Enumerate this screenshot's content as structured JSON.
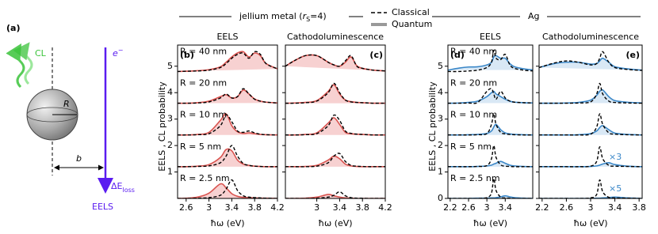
{
  "header": {
    "jellium": [
      "jellium metal (",
      "r",
      "S",
      "=4)"
    ],
    "ag": "Ag",
    "legend": [
      "Classical",
      "Quantum"
    ]
  },
  "schematic": {
    "panel": "(a)",
    "cl": "CL",
    "electron": [
      "e",
      "−"
    ],
    "radius": "R",
    "distance": "b",
    "loss": [
      "ΔE",
      "loss"
    ],
    "eels": "EELS"
  },
  "chart_data": [
    {
      "type": "line",
      "title": "EELS",
      "panel": "(b)",
      "color": "#d9534f",
      "fill": "#f5c6c6",
      "xlabel": "ħω (eV)",
      "ylabel": "EELS , CL  probability",
      "xlim": [
        2.45,
        4.2
      ],
      "xticks": [
        2.6,
        3,
        3.4,
        3.8,
        4.2
      ],
      "ylim": [
        0,
        5.8
      ],
      "yticks": [
        1,
        2,
        3,
        4,
        5
      ],
      "ytick_labels": true,
      "x": [
        2.45,
        2.6,
        2.8,
        3.0,
        3.2,
        3.3,
        3.4,
        3.5,
        3.6,
        3.7,
        3.8,
        3.9,
        4.0,
        4.2
      ],
      "rows": [
        {
          "label": "R = 2.5 nm",
          "classical": [
            0,
            0,
            0.01,
            0.03,
            0.12,
            0.35,
            0.7,
            0.3,
            0.1,
            0.05,
            0.03,
            0.02,
            0.01,
            0
          ],
          "quantum": [
            0,
            0.01,
            0.05,
            0.2,
            0.55,
            0.4,
            0.18,
            0.08,
            0.04,
            0.03,
            0.02,
            0.01,
            0.01,
            0
          ]
        },
        {
          "label": "R = 5 nm",
          "classical": [
            1.2,
            1.2,
            1.21,
            1.23,
            1.35,
            1.6,
            2.0,
            1.6,
            1.32,
            1.25,
            1.22,
            1.21,
            1.2,
            1.2
          ],
          "quantum": [
            1.2,
            1.2,
            1.22,
            1.28,
            1.55,
            1.85,
            1.8,
            1.45,
            1.3,
            1.25,
            1.22,
            1.21,
            1.2,
            1.2
          ]
        },
        {
          "label": "R = 10 nm",
          "classical": [
            2.4,
            2.4,
            2.41,
            2.45,
            2.75,
            3.16,
            2.9,
            2.55,
            2.5,
            2.55,
            2.48,
            2.43,
            2.41,
            2.4
          ],
          "quantum": [
            2.4,
            2.4,
            2.42,
            2.5,
            2.95,
            3.2,
            2.75,
            2.52,
            2.46,
            2.48,
            2.45,
            2.42,
            2.41,
            2.4
          ]
        },
        {
          "label": "R = 20 nm",
          "classical": [
            3.6,
            3.6,
            3.61,
            3.65,
            3.8,
            3.95,
            3.8,
            3.85,
            4.15,
            3.95,
            3.75,
            3.68,
            3.64,
            3.61
          ],
          "quantum": [
            3.6,
            3.6,
            3.62,
            3.68,
            3.85,
            3.92,
            3.8,
            3.85,
            4.1,
            3.95,
            3.76,
            3.68,
            3.64,
            3.61
          ]
        },
        {
          "label": "R = 40 nm",
          "classical": [
            4.8,
            4.81,
            4.82,
            4.85,
            4.95,
            5.1,
            5.3,
            5.45,
            5.5,
            5.3,
            5.55,
            5.45,
            5.1,
            4.9
          ],
          "quantum": [
            4.8,
            4.81,
            4.83,
            4.87,
            4.98,
            5.15,
            5.35,
            5.5,
            5.55,
            5.35,
            5.5,
            5.4,
            5.1,
            4.9
          ]
        }
      ]
    },
    {
      "type": "line",
      "title": "Cathodoluminescence",
      "panel": "(c)",
      "color": "#d9534f",
      "fill": "#f5c6c6",
      "xlabel": "ħω (eV)",
      "xlim": [
        2.45,
        4.2
      ],
      "xticks": [
        3,
        3.4,
        3.8,
        4.2
      ],
      "ylim": [
        0,
        5.8
      ],
      "yticks": [
        1,
        2,
        3,
        4,
        5
      ],
      "ytick_labels": false,
      "x": [
        2.45,
        2.6,
        2.8,
        3.0,
        3.2,
        3.3,
        3.4,
        3.5,
        3.6,
        3.7,
        3.8,
        3.9,
        4.0,
        4.2
      ],
      "rows": [
        {
          "classical": [
            0,
            0,
            0,
            0.01,
            0.05,
            0.12,
            0.25,
            0.1,
            0.03,
            0.01,
            0.01,
            0,
            0,
            0
          ],
          "quantum": [
            0,
            0,
            0.01,
            0.05,
            0.15,
            0.1,
            0.05,
            0.02,
            0.01,
            0,
            0,
            0,
            0,
            0
          ]
        },
        {
          "classical": [
            1.2,
            1.2,
            1.2,
            1.22,
            1.35,
            1.6,
            1.7,
            1.4,
            1.25,
            1.22,
            1.21,
            1.2,
            1.2,
            1.2
          ],
          "quantum": [
            1.2,
            1.2,
            1.21,
            1.25,
            1.45,
            1.6,
            1.5,
            1.3,
            1.23,
            1.21,
            1.2,
            1.2,
            1.2,
            1.2
          ]
        },
        {
          "classical": [
            2.4,
            2.4,
            2.41,
            2.45,
            2.75,
            3.15,
            2.95,
            2.55,
            2.46,
            2.43,
            2.42,
            2.41,
            2.4,
            2.4
          ],
          "quantum": [
            2.4,
            2.4,
            2.42,
            2.48,
            2.85,
            3.05,
            2.8,
            2.5,
            2.45,
            2.43,
            2.42,
            2.41,
            2.4,
            2.4
          ]
        },
        {
          "classical": [
            3.6,
            3.6,
            3.62,
            3.68,
            4.0,
            4.35,
            4.0,
            3.72,
            3.65,
            3.63,
            3.62,
            3.61,
            3.6,
            3.6
          ],
          "quantum": [
            3.6,
            3.61,
            3.63,
            3.7,
            4.05,
            4.3,
            3.95,
            3.72,
            3.66,
            3.63,
            3.62,
            3.61,
            3.6,
            3.6
          ]
        },
        {
          "classical": [
            5.0,
            5.2,
            5.4,
            5.4,
            5.15,
            5.05,
            5.0,
            5.2,
            5.4,
            5.0,
            4.92,
            4.88,
            4.85,
            4.82
          ],
          "quantum": [
            5.0,
            5.2,
            5.4,
            5.4,
            5.15,
            5.05,
            5.0,
            5.15,
            5.35,
            5.02,
            4.92,
            4.88,
            4.85,
            4.82
          ]
        }
      ]
    },
    {
      "type": "line",
      "title": "EELS",
      "panel": "(d)",
      "color": "#3a87c8",
      "fill": "#cfe2f3",
      "xlabel": "ħω (eV)",
      "ylabel": "EELS , CL  probability",
      "xlim": [
        2.15,
        4.0
      ],
      "xticks": [
        2.2,
        2.6,
        3,
        3.4
      ],
      "ylim": [
        0,
        5.8
      ],
      "yticks": [
        0,
        1,
        2,
        3,
        4,
        5
      ],
      "ytick_labels": true,
      "x": [
        2.15,
        2.4,
        2.6,
        2.8,
        3.0,
        3.1,
        3.15,
        3.2,
        3.3,
        3.4,
        3.5,
        3.6,
        3.8,
        4.0
      ],
      "rows": [
        {
          "label": "R = 2.5 nm",
          "classical": [
            0,
            0,
            0,
            0,
            0.03,
            0.2,
            0.75,
            0.3,
            0.05,
            0.02,
            0.01,
            0,
            0,
            0
          ],
          "quantum": [
            0,
            0,
            0,
            0.01,
            0.01,
            0.02,
            0.02,
            0.03,
            0.06,
            0.1,
            0.06,
            0.03,
            0.01,
            0
          ]
        },
        {
          "label": "R = 5 nm",
          "classical": [
            1.2,
            1.2,
            1.2,
            1.21,
            1.24,
            1.5,
            2.0,
            1.55,
            1.27,
            1.22,
            1.21,
            1.2,
            1.2,
            1.2
          ],
          "quantum": [
            1.2,
            1.2,
            1.2,
            1.21,
            1.23,
            1.26,
            1.3,
            1.33,
            1.4,
            1.33,
            1.26,
            1.23,
            1.21,
            1.2
          ]
        },
        {
          "label": "R = 10 nm",
          "classical": [
            2.4,
            2.4,
            2.4,
            2.41,
            2.45,
            2.8,
            3.2,
            2.8,
            2.5,
            2.44,
            2.42,
            2.41,
            2.4,
            2.4
          ],
          "quantum": [
            2.4,
            2.4,
            2.41,
            2.42,
            2.46,
            2.55,
            2.7,
            2.8,
            2.6,
            2.48,
            2.44,
            2.42,
            2.41,
            2.4
          ]
        },
        {
          "label": "R = 20 nm",
          "classical": [
            3.6,
            3.6,
            3.61,
            3.63,
            4.05,
            4.15,
            3.95,
            3.75,
            4.05,
            3.8,
            3.68,
            3.64,
            3.62,
            3.61
          ],
          "quantum": [
            3.6,
            3.61,
            3.63,
            3.68,
            3.85,
            4.0,
            4.05,
            3.95,
            3.85,
            3.75,
            3.68,
            3.64,
            3.62,
            3.61
          ]
        },
        {
          "label": "R = 40 nm",
          "classical": [
            4.8,
            4.8,
            4.82,
            4.85,
            4.95,
            5.15,
            5.6,
            5.3,
            5.25,
            5.45,
            5.05,
            4.92,
            4.85,
            4.82
          ],
          "quantum": [
            4.85,
            4.93,
            4.97,
            4.98,
            5.05,
            5.15,
            5.35,
            5.4,
            5.3,
            5.3,
            5.1,
            4.98,
            4.9,
            4.86
          ]
        }
      ]
    },
    {
      "type": "line",
      "title": "Cathodoluminescence",
      "panel": "(e)",
      "color": "#3a87c8",
      "fill": "#cfe2f3",
      "xlabel": "ħω (eV)",
      "xlim": [
        2.15,
        3.85
      ],
      "xticks": [
        2.2,
        2.6,
        3,
        3.4,
        3.8
      ],
      "ylim": [
        0,
        5.8
      ],
      "yticks": [
        0,
        1,
        2,
        3,
        4,
        5
      ],
      "ytick_labels": false,
      "x": [
        2.15,
        2.4,
        2.6,
        2.8,
        3.0,
        3.1,
        3.15,
        3.2,
        3.3,
        3.4,
        3.6,
        3.85
      ],
      "rows": [
        {
          "classical": [
            0,
            0,
            0,
            0,
            0.02,
            0.15,
            0.7,
            0.25,
            0.04,
            0.02,
            0.01,
            0
          ],
          "quantum": [
            0,
            0,
            0,
            0,
            0,
            0.01,
            0.01,
            0.02,
            0.03,
            0.05,
            0.02,
            0
          ],
          "quantum_scale": "×5"
        },
        {
          "classical": [
            1.2,
            1.2,
            1.2,
            1.2,
            1.22,
            1.4,
            1.95,
            1.5,
            1.25,
            1.22,
            1.21,
            1.2
          ],
          "quantum": [
            1.2,
            1.2,
            1.2,
            1.2,
            1.21,
            1.23,
            1.26,
            1.3,
            1.35,
            1.28,
            1.22,
            1.2
          ],
          "quantum_scale": "×3"
        },
        {
          "classical": [
            2.4,
            2.4,
            2.4,
            2.4,
            2.43,
            2.7,
            3.2,
            2.8,
            2.48,
            2.43,
            2.41,
            2.4
          ],
          "quantum": [
            2.4,
            2.4,
            2.4,
            2.41,
            2.45,
            2.55,
            2.68,
            2.75,
            2.6,
            2.47,
            2.42,
            2.4
          ]
        },
        {
          "classical": [
            3.6,
            3.6,
            3.6,
            3.61,
            3.65,
            3.95,
            4.35,
            3.95,
            3.68,
            3.63,
            3.61,
            3.6
          ],
          "quantum": [
            3.6,
            3.6,
            3.61,
            3.63,
            3.72,
            3.9,
            4.05,
            4.1,
            3.85,
            3.7,
            3.64,
            3.61
          ]
        },
        {
          "classical": [
            4.95,
            5.12,
            5.2,
            5.15,
            5.05,
            5.1,
            5.3,
            5.55,
            5.15,
            4.95,
            4.88,
            4.84
          ],
          "quantum": [
            4.95,
            5.1,
            5.15,
            5.15,
            5.08,
            5.1,
            5.2,
            5.3,
            5.15,
            4.98,
            4.9,
            4.85
          ]
        }
      ]
    }
  ]
}
